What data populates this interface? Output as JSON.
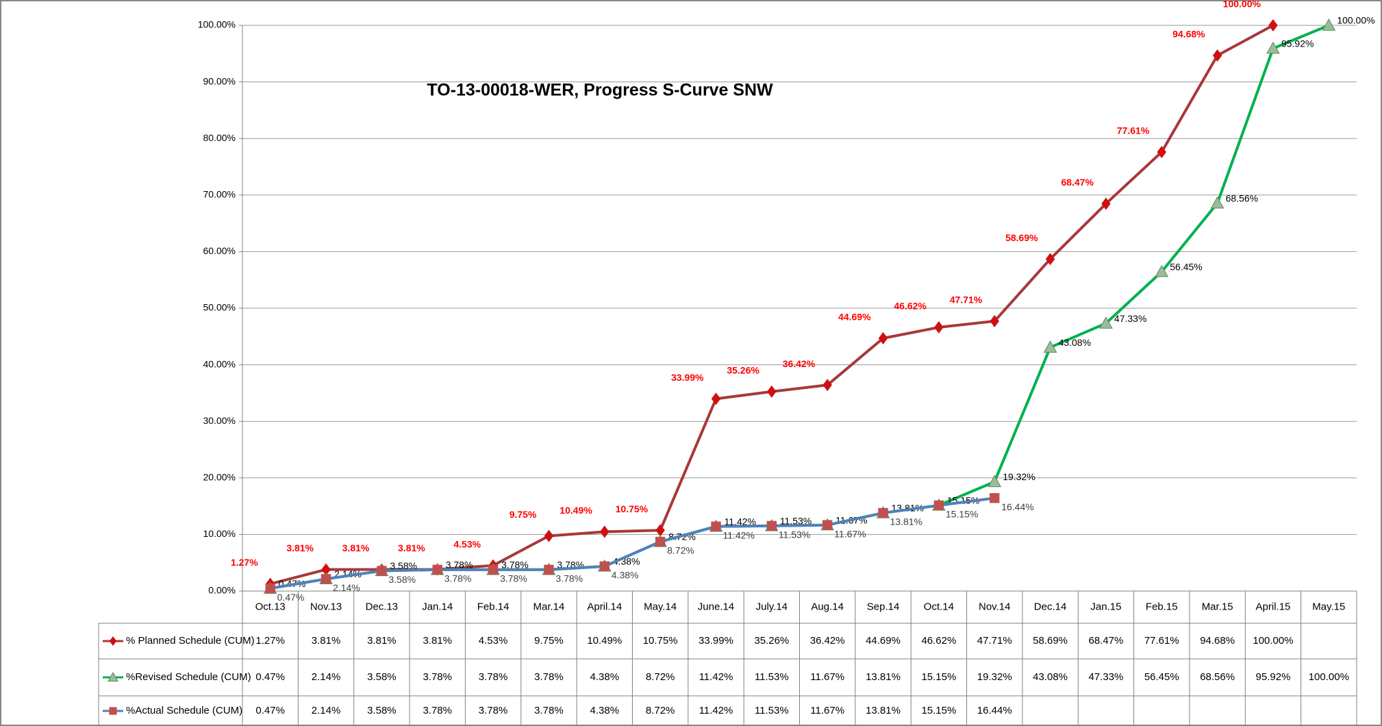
{
  "chart_data": {
    "type": "line",
    "title": "TO-13-00018-WER, Progress S-Curve SNW",
    "categories": [
      "Oct.13",
      "Nov.13",
      "Dec.13",
      "Jan.14",
      "Feb.14",
      "Mar.14",
      "April.14",
      "May.14",
      "June.14",
      "July.14",
      "Aug.14",
      "Sep.14",
      "Oct.14",
      "Nov.14",
      "Dec.14",
      "Jan.15",
      "Feb.15",
      "Mar.15",
      "April.15",
      "May.15"
    ],
    "series": [
      {
        "name": "% Planned  Schedule (CUM)",
        "color": "#a8383a",
        "marker": "diamond",
        "marker_color": "#d01010",
        "label_color": "#ff0000",
        "values": [
          1.27,
          3.81,
          3.81,
          3.81,
          4.53,
          9.75,
          10.49,
          10.75,
          33.99,
          35.26,
          36.42,
          44.69,
          46.62,
          47.71,
          58.69,
          68.47,
          77.61,
          94.68,
          100.0,
          null
        ],
        "value_labels": [
          "1.27%",
          "3.81%",
          "3.81%",
          "3.81%",
          "4.53%",
          "9.75%",
          "10.49%",
          "10.75%",
          "33.99%",
          "35.26%",
          "36.42%",
          "44.69%",
          "46.62%",
          "47.71%",
          "58.69%",
          "68.47%",
          "77.61%",
          "94.68%",
          "100.00%",
          null
        ]
      },
      {
        "name": "%Revised Schedule (CUM)",
        "color": "#00b050",
        "marker": "triangle",
        "marker_color": "#9bbb9b",
        "label_color": "#000000",
        "values": [
          0.47,
          2.14,
          3.58,
          3.78,
          3.78,
          3.78,
          4.38,
          8.72,
          11.42,
          11.53,
          11.67,
          13.81,
          15.15,
          19.32,
          43.08,
          47.33,
          56.45,
          68.56,
          95.92,
          100.0
        ],
        "value_labels": [
          "0.47%",
          "2.14%",
          "3.58%",
          "3.78%",
          "3.78%",
          "3.78%",
          "4.38%",
          "8.72%",
          "11.42%",
          "11.53%",
          "11.67%",
          "13.81%",
          "15.15%",
          "19.32%",
          "43.08%",
          "47.33%",
          "56.45%",
          "68.56%",
          "95.92%",
          "100.00%"
        ]
      },
      {
        "name": "%Actual Schedule (CUM)",
        "color": "#4f81bd",
        "marker": "square",
        "marker_color": "#c0504d",
        "label_color": "#404040",
        "values": [
          0.47,
          2.14,
          3.58,
          3.78,
          3.78,
          3.78,
          4.38,
          8.72,
          11.42,
          11.53,
          11.67,
          13.81,
          15.15,
          16.44,
          null,
          null,
          null,
          null,
          null,
          null
        ],
        "value_labels": [
          "0.47%",
          "2.14%",
          "3.58%",
          "3.78%",
          "3.78%",
          "3.78%",
          "4.38%",
          "8.72%",
          "11.42%",
          "11.53%",
          "11.67%",
          "13.81%",
          "15.15%",
          "16.44%",
          null,
          null,
          null,
          null,
          null,
          null
        ]
      }
    ],
    "ylim": [
      0,
      100
    ],
    "yticks": [
      {
        "value": 0,
        "label": "0.00%"
      },
      {
        "value": 10,
        "label": "10.00%"
      },
      {
        "value": 20,
        "label": "20.00%"
      },
      {
        "value": 30,
        "label": "30.00%"
      },
      {
        "value": 40,
        "label": "40.00%"
      },
      {
        "value": 50,
        "label": "50.00%"
      },
      {
        "value": 60,
        "label": "60.00%"
      },
      {
        "value": 70,
        "label": "70.00%"
      },
      {
        "value": 80,
        "label": "80.00%"
      },
      {
        "value": 90,
        "label": "90.00%"
      },
      {
        "value": 100,
        "label": "100.00%"
      }
    ],
    "grid": true,
    "data_table": true
  }
}
